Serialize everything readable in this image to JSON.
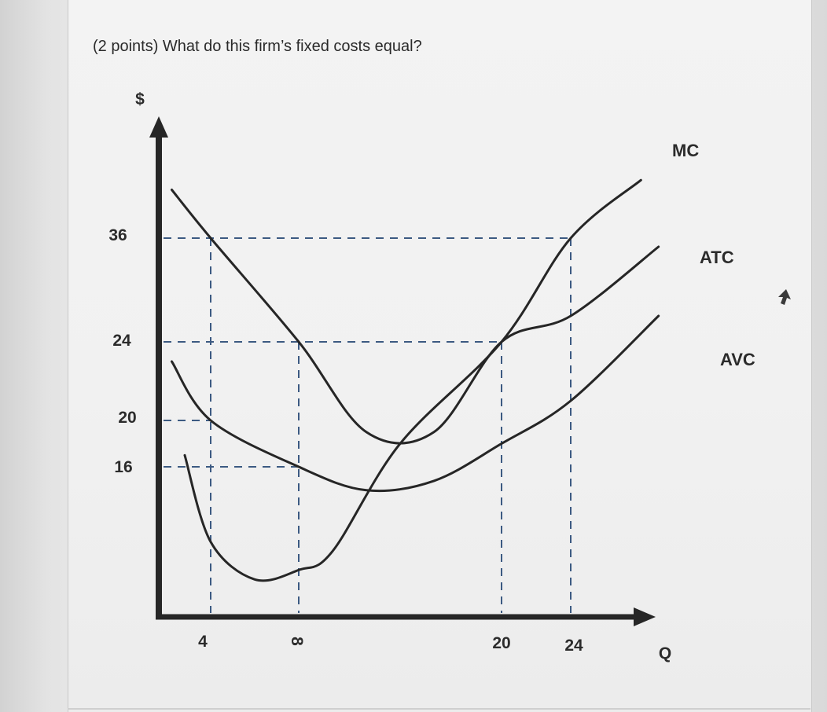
{
  "question": "(2 points) What do this firm’s fixed costs equal?",
  "colors": {
    "curves": "#262626",
    "guides": "#3c5a82",
    "axes": "#262626"
  },
  "chart_data": {
    "type": "line",
    "title": "",
    "xlabel": "Q",
    "ylabel": "$",
    "xlim": [
      0,
      30
    ],
    "ylim": [
      0,
      46
    ],
    "grid": false,
    "x_ticks": [
      "4",
      "8",
      "20",
      "24"
    ],
    "y_ticks": [
      "36",
      "24",
      "20",
      "16"
    ],
    "series": [
      {
        "name": "MC",
        "points": [
          [
            2,
            17
          ],
          [
            4,
            8
          ],
          [
            6,
            4
          ],
          [
            8,
            5
          ],
          [
            10,
            7
          ],
          [
            14,
            18
          ],
          [
            20,
            24
          ],
          [
            24,
            36
          ],
          [
            28,
            42
          ]
        ]
      },
      {
        "name": "ATC",
        "points": [
          [
            1,
            41
          ],
          [
            4,
            36
          ],
          [
            8,
            24
          ],
          [
            12,
            19
          ],
          [
            16,
            19
          ],
          [
            20,
            24
          ],
          [
            24,
            27
          ],
          [
            29,
            35
          ]
        ]
      },
      {
        "name": "AVC",
        "points": [
          [
            1,
            23
          ],
          [
            4,
            20
          ],
          [
            8,
            16
          ],
          [
            12,
            13.5
          ],
          [
            16,
            14.5
          ],
          [
            20,
            18
          ],
          [
            24,
            21
          ],
          [
            29,
            27
          ]
        ]
      }
    ],
    "guides": [
      {
        "y": 36,
        "x": 24
      },
      {
        "y": 24,
        "x": 20
      },
      {
        "y": 20,
        "x": 4
      },
      {
        "y": 16,
        "x": 8
      },
      {
        "x": 4,
        "y": 36
      },
      {
        "x": 8,
        "y": 24
      },
      {
        "x": 20,
        "y": 24
      },
      {
        "x": 24,
        "y": 36
      }
    ]
  }
}
